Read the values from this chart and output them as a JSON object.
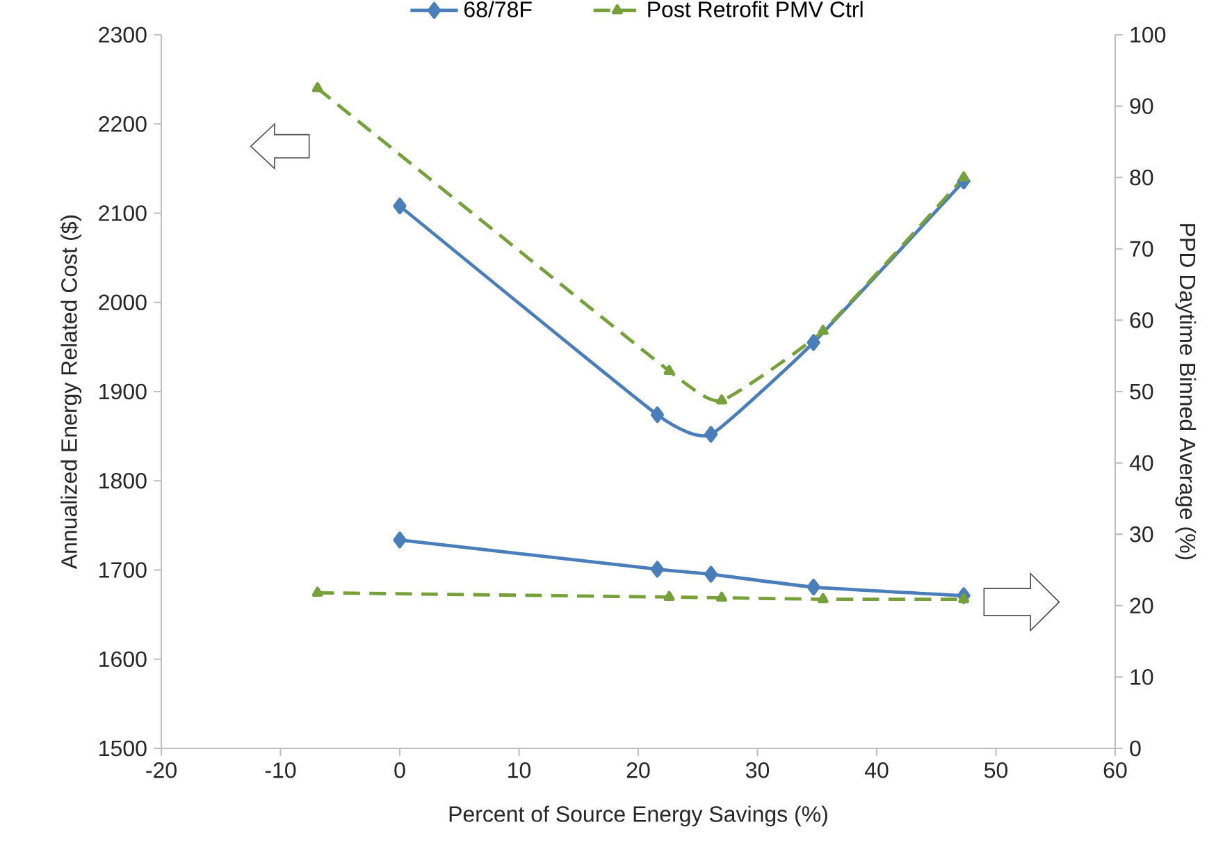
{
  "chart_data": {
    "type": "line",
    "xlabel": "Percent of Source Energy Savings (%)",
    "ylabel": "Annualized Energy Related Cost ($)",
    "y2label": "PPD Daytime Binned Average (%)",
    "xlim": [
      -20,
      60
    ],
    "xticks": [
      -20,
      -10,
      0,
      10,
      20,
      30,
      40,
      50,
      60
    ],
    "ylim": [
      1500,
      2300
    ],
    "yticks": [
      1500,
      1600,
      1700,
      1800,
      1900,
      2000,
      2100,
      2200,
      2300
    ],
    "y2lim": [
      0,
      100
    ],
    "y2ticks": [
      0,
      10,
      20,
      30,
      40,
      50,
      60,
      70,
      80,
      90,
      100
    ],
    "grid": false,
    "legend": "top",
    "series": [
      {
        "name": "68/78F",
        "color": "#4a7ebb",
        "marker": "diamond",
        "line_style": "solid",
        "x": [
          0,
          21.6,
          26.1,
          34.7,
          47.3
        ],
        "values": [
          2108,
          1874,
          1852,
          1955,
          2136
        ]
      },
      {
        "name": "Post Retrofit PMV Ctrl",
        "color": "#77a03a",
        "marker": "triangle",
        "line_style": "dashed",
        "x": [
          -6.9,
          22.6,
          27.0,
          35.5,
          47.3
        ],
        "values": [
          2240,
          1923,
          1890,
          1968,
          2140
        ]
      },
      {
        "color": "#4a7ebb",
        "marker": "diamond",
        "line_style": "solid",
        "axis": "y2",
        "x": [
          0,
          21.6,
          26.1,
          34.7,
          47.3
        ],
        "values": [
          29.2,
          25.1,
          24.4,
          22.6,
          21.4
        ]
      },
      {
        "color": "#77a03a",
        "marker": "triangle",
        "line_style": "dashed",
        "axis": "y2",
        "x": [
          -6.9,
          22.6,
          27.0,
          35.5,
          47.3
        ],
        "values": [
          21.8,
          21.2,
          21.1,
          20.9,
          20.9
        ]
      }
    ]
  }
}
